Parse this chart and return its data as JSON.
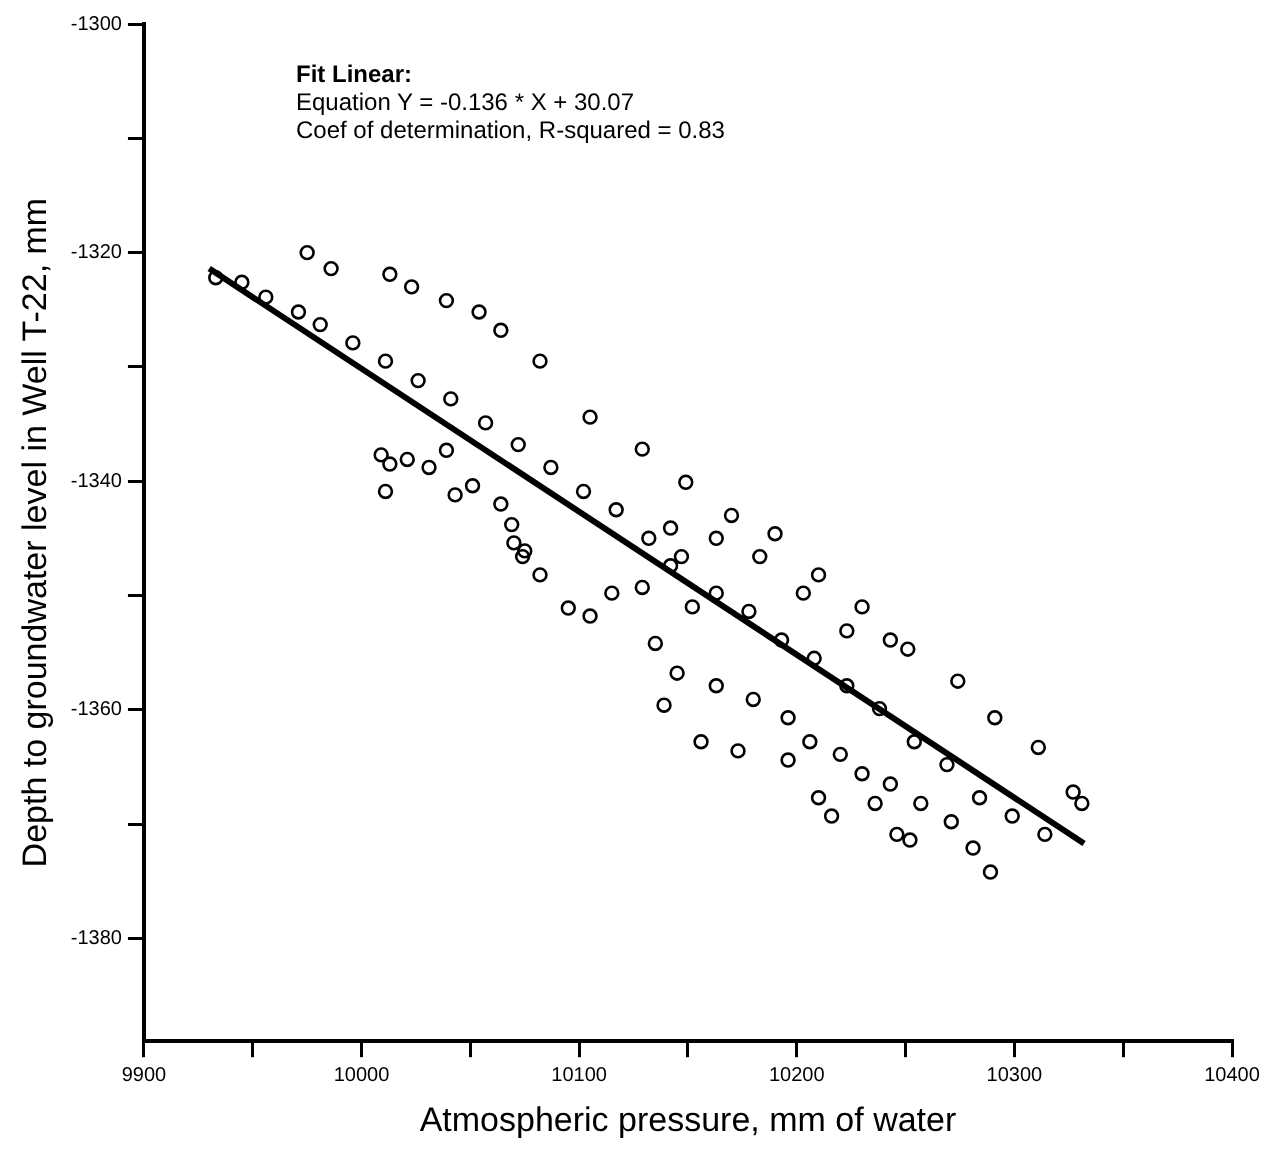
{
  "chart_data": {
    "type": "scatter",
    "xlabel": "Atmospheric pressure, mm of water",
    "ylabel": "Depth to groundwater level in Well T-22, mm",
    "annotations": [
      "Fit Linear:",
      "Equation Y = -0.136 * X + 30.07",
      "Coef of determination, R-squared = 0.83"
    ],
    "xlim": [
      9900,
      10400
    ],
    "xticks": [
      9900,
      {
        "value": 9950,
        "label": null
      },
      10000,
      {
        "value": 10050,
        "label": null
      },
      10100,
      {
        "value": 10150,
        "label": null
      },
      10200,
      {
        "value": 10250,
        "label": null
      },
      10300,
      {
        "value": 10350,
        "label": null
      },
      10400
    ],
    "ylim": [
      -1389,
      -1300
    ],
    "yticks": [
      -1380,
      {
        "value": -1370,
        "label": null
      },
      -1360,
      {
        "value": -1350,
        "label": null
      },
      -1340,
      {
        "value": -1330,
        "label": null
      },
      -1320,
      {
        "value": -1310,
        "label": null
      },
      -1300
    ],
    "grid": false,
    "legend": false,
    "marker": "circle",
    "series": [
      {
        "color": "#000000",
        "x": [
          9975,
          9986,
          10013,
          10023,
          10039,
          10054,
          10064,
          10082,
          10105,
          10129,
          10149,
          10170,
          10190,
          10210,
          10230,
          10251,
          10274,
          10291,
          10311,
          10327,
          10331,
          9933,
          9945,
          9956,
          9971,
          9981,
          9996,
          10011,
          10026,
          10041,
          10057,
          10072,
          10087,
          10102,
          10117,
          10132,
          10147,
          10163,
          10178,
          10193,
          10208,
          10223,
          10238,
          10254,
          10269,
          10284,
          10299,
          10314,
          10183,
          10203,
          10223,
          10243,
          10163,
          10142,
          10009,
          10013,
          10021,
          10031,
          10039,
          10043,
          10051,
          10064,
          10070,
          10074,
          10011,
          10069,
          10075,
          10082,
          10095,
          10105,
          10115,
          10129,
          10135,
          10145,
          10163,
          10180,
          10196,
          10206,
          10220,
          10230,
          10236,
          10246,
          10252,
          10139,
          10156,
          10173,
          10196,
          10210,
          10216,
          10243,
          10257,
          10271,
          10281,
          10289,
          10142,
          10152
        ],
        "values": [
          -1320.0,
          -1321.4,
          -1321.9,
          -1323.0,
          -1324.2,
          -1325.2,
          -1326.8,
          -1329.5,
          -1334.4,
          -1337.2,
          -1340.1,
          -1343.0,
          -1344.6,
          -1348.2,
          -1351.0,
          -1354.7,
          -1357.5,
          -1360.7,
          -1363.3,
          -1367.2,
          -1368.2,
          -1322.2,
          -1322.6,
          -1323.9,
          -1325.2,
          -1326.3,
          -1327.9,
          -1329.5,
          -1331.2,
          -1332.8,
          -1334.9,
          -1336.8,
          -1338.8,
          -1340.9,
          -1342.5,
          -1345.0,
          -1346.6,
          -1349.8,
          -1351.4,
          -1353.9,
          -1355.5,
          -1357.9,
          -1359.9,
          -1362.8,
          -1364.8,
          -1367.7,
          -1369.3,
          -1370.9,
          -1346.6,
          -1349.8,
          -1353.1,
          -1353.9,
          -1345.0,
          -1344.1,
          -1337.7,
          -1338.5,
          -1338.1,
          -1338.8,
          -1337.3,
          -1341.2,
          -1340.4,
          -1342.0,
          -1345.4,
          -1346.6,
          -1340.9,
          -1343.8,
          -1346.1,
          -1348.2,
          -1351.1,
          -1351.8,
          -1349.8,
          -1349.3,
          -1354.2,
          -1356.8,
          -1357.9,
          -1359.1,
          -1360.7,
          -1362.8,
          -1363.9,
          -1365.6,
          -1368.2,
          -1370.9,
          -1371.4,
          -1359.6,
          -1362.8,
          -1363.6,
          -1364.4,
          -1367.7,
          -1369.3,
          -1366.5,
          -1368.2,
          -1369.8,
          -1372.1,
          -1374.2,
          -1347.4,
          -1351.0
        ]
      },
      {
        "type": "line",
        "color": "#000000",
        "marker": "none",
        "line_style": "solid",
        "x": [
          9930,
          10332
        ],
        "values": [
          -1321.4,
          -1371.7
        ]
      }
    ]
  }
}
